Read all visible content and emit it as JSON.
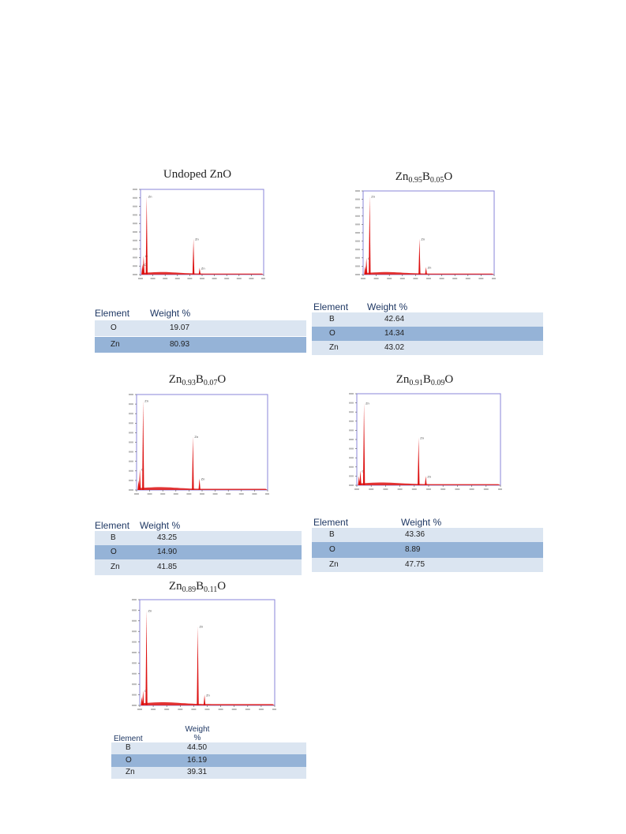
{
  "panels": [
    {
      "title": {
        "pre": "Undoped ZnO",
        "zn_sub": "",
        "b": "",
        "b_sub": "",
        "post": ""
      },
      "header": {
        "element": "Element",
        "weight": "Weight %"
      },
      "rows": [
        {
          "element": "O",
          "weight": "19.07"
        },
        {
          "element": "Zn",
          "weight": "80.93"
        }
      ]
    },
    {
      "title": {
        "pre": "Zn",
        "zn_sub": "0.95",
        "b": "B",
        "b_sub": "0.05",
        "post": "O"
      },
      "header": {
        "element": "Element",
        "weight": "Weight %"
      },
      "rows": [
        {
          "element": "B",
          "weight": "42.64"
        },
        {
          "element": "O",
          "weight": "14.34"
        },
        {
          "element": "Zn",
          "weight": "43.02"
        }
      ]
    },
    {
      "title": {
        "pre": "Zn",
        "zn_sub": "0.93",
        "b": "B",
        "b_sub": "0.07",
        "post": "O"
      },
      "header": {
        "element": "Element",
        "weight": "Weight %"
      },
      "rows": [
        {
          "element": "B",
          "weight": "43.25"
        },
        {
          "element": "O",
          "weight": "14.90"
        },
        {
          "element": "Zn",
          "weight": "41.85"
        }
      ]
    },
    {
      "title": {
        "pre": "Zn",
        "zn_sub": "0.91",
        "b": "B",
        "b_sub": "0.09",
        "post": "O"
      },
      "header": {
        "element": "Element",
        "weight": "Weight %"
      },
      "rows": [
        {
          "element": "B",
          "weight": "43.36"
        },
        {
          "element": "O",
          "weight": "8.89"
        },
        {
          "element": "Zn",
          "weight": "47.75"
        }
      ]
    },
    {
      "title": {
        "pre": "Zn",
        "zn_sub": "0.89",
        "b": "B",
        "b_sub": "0.11",
        "post": "O"
      },
      "header": {
        "element": "Element",
        "weight": "Weight\n%"
      },
      "rows": [
        {
          "element": "B",
          "weight": "44.50"
        },
        {
          "element": "O",
          "weight": "16.19"
        },
        {
          "element": "Zn",
          "weight": "39.31"
        }
      ]
    }
  ],
  "colors": {
    "peak": "#dd1111",
    "frame": "#8a84d8",
    "row_light": "#dbe5f1",
    "row_dark": "#95b3d7",
    "header": "#1f3864"
  },
  "chart_data": [
    {
      "type": "line",
      "xlim": [
        0,
        20
      ],
      "peaks": [
        {
          "x": 0.3,
          "height": 0.12,
          "label": "C"
        },
        {
          "x": 0.5,
          "height": 0.22,
          "label": "O"
        },
        {
          "x": 1.0,
          "height": 0.92,
          "label": "Zn"
        },
        {
          "x": 8.6,
          "height": 0.42,
          "label": "Zn"
        },
        {
          "x": 9.6,
          "height": 0.08,
          "label": "Zn"
        }
      ]
    },
    {
      "type": "line",
      "xlim": [
        0,
        20
      ],
      "peaks": [
        {
          "x": 0.3,
          "height": 0.1,
          "label": ""
        },
        {
          "x": 0.5,
          "height": 0.2,
          "label": "O"
        },
        {
          "x": 1.0,
          "height": 0.94,
          "label": "Zn"
        },
        {
          "x": 8.6,
          "height": 0.43,
          "label": "Zn"
        },
        {
          "x": 9.6,
          "height": 0.09,
          "label": "Zn"
        }
      ]
    },
    {
      "type": "line",
      "xlim": [
        0,
        20
      ],
      "peaks": [
        {
          "x": 0.3,
          "height": 0.1,
          "label": ""
        },
        {
          "x": 0.5,
          "height": 0.22,
          "label": "O"
        },
        {
          "x": 1.0,
          "height": 0.94,
          "label": "Zn"
        },
        {
          "x": 8.6,
          "height": 0.56,
          "label": "Zn"
        },
        {
          "x": 9.6,
          "height": 0.12,
          "label": "Zn"
        }
      ]
    },
    {
      "type": "line",
      "xlim": [
        0,
        20
      ],
      "peaks": [
        {
          "x": 0.3,
          "height": 0.1,
          "label": ""
        },
        {
          "x": 0.5,
          "height": 0.16,
          "label": "O"
        },
        {
          "x": 1.0,
          "height": 0.9,
          "label": "Zn"
        },
        {
          "x": 8.6,
          "height": 0.52,
          "label": "Zn"
        },
        {
          "x": 9.6,
          "height": 0.1,
          "label": "Zn"
        }
      ]
    },
    {
      "type": "line",
      "xlim": [
        0,
        20
      ],
      "peaks": [
        {
          "x": 0.3,
          "height": 0.08,
          "label": ""
        },
        {
          "x": 0.5,
          "height": 0.14,
          "label": "O"
        },
        {
          "x": 1.0,
          "height": 0.9,
          "label": "Zn"
        },
        {
          "x": 8.6,
          "height": 0.75,
          "label": "Zn"
        },
        {
          "x": 9.6,
          "height": 0.1,
          "label": "Zn"
        }
      ]
    }
  ]
}
